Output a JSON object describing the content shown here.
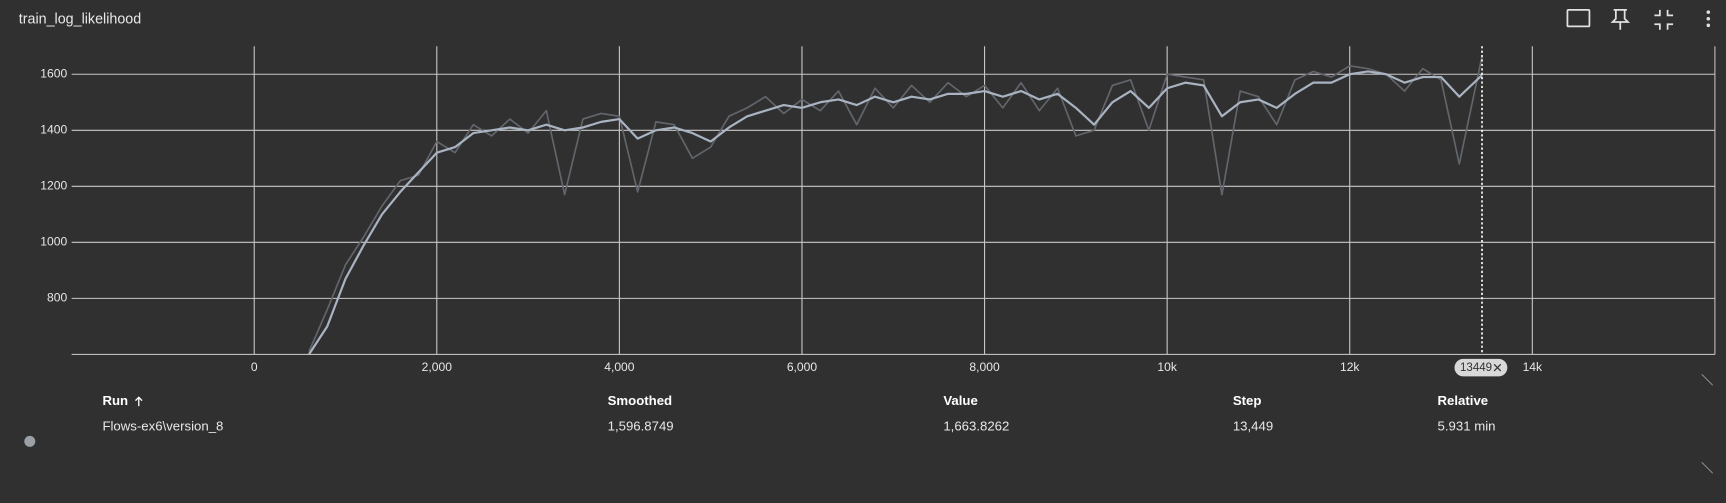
{
  "chart_data": {
    "type": "line",
    "title": "train_log_likelihood",
    "x": [
      600,
      800,
      1000,
      1200,
      1400,
      1600,
      1800,
      2000,
      2200,
      2400,
      2600,
      2800,
      3000,
      3200,
      3400,
      3600,
      3800,
      4000,
      4200,
      4400,
      4600,
      4800,
      5000,
      5200,
      5400,
      5600,
      5800,
      6000,
      6200,
      6400,
      6600,
      6800,
      7000,
      7200,
      7400,
      7600,
      7800,
      8000,
      8200,
      8400,
      8600,
      8800,
      9000,
      9200,
      9400,
      9600,
      9800,
      10000,
      10200,
      10400,
      10600,
      10800,
      11000,
      11200,
      11400,
      11600,
      11800,
      12000,
      12200,
      12400,
      12600,
      12800,
      13000,
      13200,
      13449
    ],
    "series": [
      {
        "color": "#62666c",
        "values": [
          610,
          760,
          920,
          1020,
          1130,
          1220,
          1240,
          1360,
          1320,
          1420,
          1380,
          1440,
          1390,
          1470,
          1170,
          1440,
          1460,
          1450,
          1180,
          1430,
          1420,
          1300,
          1340,
          1450,
          1480,
          1520,
          1460,
          1510,
          1470,
          1540,
          1420,
          1550,
          1480,
          1560,
          1500,
          1570,
          1520,
          1560,
          1480,
          1570,
          1470,
          1550,
          1380,
          1400,
          1560,
          1580,
          1400,
          1600,
          1590,
          1580,
          1170,
          1540,
          1520,
          1420,
          1580,
          1610,
          1590,
          1630,
          1620,
          1600,
          1540,
          1620,
          1580,
          1280,
          1663.8262
        ]
      },
      {
        "color": "#a9b3c1",
        "values": [
          600,
          700,
          870,
          990,
          1100,
          1180,
          1250,
          1320,
          1340,
          1390,
          1400,
          1410,
          1400,
          1420,
          1400,
          1410,
          1430,
          1440,
          1370,
          1400,
          1410,
          1390,
          1360,
          1410,
          1450,
          1470,
          1490,
          1480,
          1500,
          1510,
          1490,
          1520,
          1500,
          1520,
          1510,
          1530,
          1530,
          1540,
          1520,
          1540,
          1510,
          1530,
          1480,
          1420,
          1500,
          1540,
          1480,
          1550,
          1570,
          1560,
          1450,
          1500,
          1510,
          1480,
          1530,
          1570,
          1570,
          1600,
          1610,
          1600,
          1570,
          1590,
          1590,
          1520,
          1596.8749
        ]
      }
    ],
    "xlim": [
      -2000,
      16000
    ],
    "xticks": [
      0,
      {
        "value": 2000,
        "label": "2,000"
      },
      {
        "value": 4000,
        "label": "4,000"
      },
      {
        "value": 6000,
        "label": "6,000"
      },
      {
        "value": 8000,
        "label": "8,000"
      },
      {
        "value": 10000,
        "label": "10k"
      },
      {
        "value": 12000,
        "label": "12k"
      },
      {
        "value": 14000,
        "label": "14k"
      }
    ],
    "ylim": [
      600,
      1700
    ],
    "yticks": [
      800,
      1000,
      1200,
      1400,
      1600
    ],
    "grid": true,
    "cursor": 13449
  },
  "table": {
    "headers": [
      "Run",
      "Smoothed",
      "Value",
      "Step",
      "Relative"
    ],
    "rows": [
      [
        "Flows-ex6\\version_8",
        "1,596.8749",
        "1,663.8262",
        "13,449",
        "5.931 min"
      ]
    ]
  }
}
